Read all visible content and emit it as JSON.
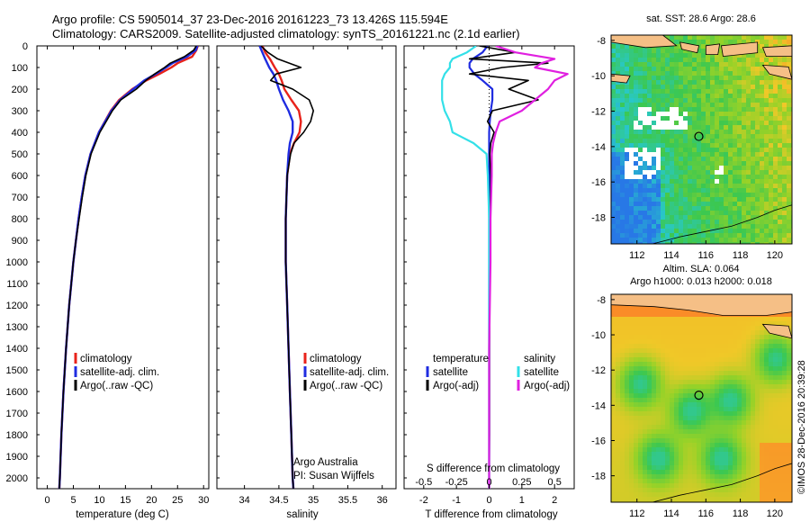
{
  "header": {
    "title_line1": "Argo profile: CS 5905014_37 23-Dec-2016 20161223_73 13.426S 115.594E",
    "title_line2": "Climatology: CARS2009. Satellite-adjusted climatology: synTS_20161221.nc (2.1d earlier)"
  },
  "colors": {
    "climatology": "#e8231b",
    "satellite": "#1f2ce0",
    "argo": "#000000",
    "salinity_satellite": "#33e0e8",
    "salinity_argo": "#e020e0",
    "land": "#f5bf86"
  },
  "depth_ticks": [
    "0",
    "100",
    "200",
    "300",
    "400",
    "500",
    "600",
    "700",
    "800",
    "900",
    "1000",
    "1100",
    "1200",
    "1300",
    "1400",
    "1500",
    "1600",
    "1700",
    "1800",
    "1900",
    "2000"
  ],
  "chart_data": [
    {
      "type": "line",
      "id": "temperature",
      "xlabel": "temperature (deg C)",
      "xlim": [
        -2,
        31
      ],
      "ylim": [
        2050,
        0
      ],
      "xticks": [
        "0",
        "5",
        "10",
        "15",
        "20",
        "25",
        "30"
      ],
      "depth": [
        0,
        20,
        50,
        80,
        100,
        130,
        160,
        200,
        250,
        300,
        400,
        500,
        600,
        700,
        800,
        900,
        1000,
        1200,
        1400,
        1600,
        1800,
        2000,
        2050
      ],
      "series": [
        {
          "name": "climatology",
          "values": [
            28.9,
            28.6,
            27.8,
            25.0,
            23.8,
            21.5,
            19.0,
            16.3,
            13.8,
            12.2,
            9.9,
            8.3,
            7.3,
            6.6,
            6.0,
            5.5,
            5.0,
            4.2,
            3.6,
            3.1,
            2.7,
            2.4,
            2.3
          ]
        },
        {
          "name": "satellite-adj. clim.",
          "values": [
            28.8,
            28.5,
            26.8,
            24.0,
            22.8,
            20.8,
            18.6,
            16.5,
            14.0,
            12.3,
            9.9,
            8.3,
            7.3,
            6.6,
            6.0,
            5.5,
            5.0,
            4.2,
            3.6,
            3.1,
            2.7,
            2.4,
            2.3
          ]
        },
        {
          "name": "Argo(..raw -QC)",
          "values": [
            28.6,
            28.1,
            26.3,
            23.6,
            22.5,
            20.6,
            18.9,
            17.1,
            14.1,
            12.5,
            10.1,
            8.4,
            7.4,
            6.7,
            6.1,
            5.5,
            5.0,
            4.2,
            3.6,
            3.1,
            2.7,
            2.4,
            2.3
          ]
        }
      ]
    },
    {
      "type": "line",
      "id": "salinity",
      "xlabel": "salinity",
      "xlim": [
        33.6,
        36.2
      ],
      "ylim": [
        2050,
        0
      ],
      "xticks": [
        "34",
        "34.5",
        "35",
        "35.5",
        "36"
      ],
      "depth": [
        0,
        30,
        60,
        100,
        130,
        160,
        200,
        250,
        300,
        350,
        400,
        450,
        500,
        600,
        800,
        1000,
        1200,
        1400,
        1600,
        1800,
        2000,
        2050
      ],
      "series": [
        {
          "name": "climatology",
          "values": [
            34.26,
            34.3,
            34.37,
            34.44,
            34.5,
            34.54,
            34.58,
            34.68,
            34.79,
            34.82,
            34.8,
            34.72,
            34.66,
            34.62,
            34.6,
            34.6,
            34.62,
            34.64,
            34.66,
            34.68,
            34.7,
            34.71
          ]
        },
        {
          "name": "satellite-adj. clim.",
          "values": [
            34.22,
            34.26,
            34.3,
            34.36,
            34.42,
            34.46,
            34.5,
            34.56,
            34.64,
            34.7,
            34.7,
            34.66,
            34.64,
            34.62,
            34.6,
            34.6,
            34.62,
            34.64,
            34.66,
            34.68,
            34.7,
            34.71
          ]
        },
        {
          "name": "Argo(..raw -QC)",
          "values": [
            34.24,
            34.34,
            34.48,
            34.82,
            34.46,
            34.38,
            34.7,
            34.94,
            35.0,
            34.96,
            34.86,
            34.72,
            34.67,
            34.62,
            34.6,
            34.6,
            34.62,
            34.64,
            34.66,
            34.68,
            34.7,
            34.71
          ]
        }
      ]
    },
    {
      "type": "line",
      "id": "difference",
      "xlabel": "T difference from climatology",
      "xlabel_top": "S difference from climatology",
      "xlim": [
        -2.6,
        2.6
      ],
      "ylim": [
        2050,
        0
      ],
      "xticks": [
        "-2",
        "-1",
        "0",
        "1",
        "2"
      ],
      "xticks_top": [
        "-0.5",
        "-0.25",
        "0",
        "0.25",
        "0.5"
      ],
      "depth": [
        0,
        30,
        60,
        80,
        100,
        130,
        160,
        200,
        250,
        300,
        350,
        400,
        450,
        500,
        600,
        800,
        1000,
        1400,
        1800,
        2050
      ],
      "series": [
        {
          "name": "temperature satellite",
          "values": [
            -0.05,
            -0.2,
            -0.5,
            -0.6,
            -0.6,
            -0.45,
            -0.2,
            0.1,
            0.1,
            0.05,
            0.02,
            0.0,
            0.0,
            0.0,
            0.0,
            0.0,
            0.0,
            0.0,
            0.0,
            0.0
          ]
        },
        {
          "name": "temperature Argo(-adj)",
          "values": [
            -0.3,
            0.8,
            -0.6,
            1.8,
            0.4,
            -0.6,
            1.2,
            0.6,
            1.5,
            0.1,
            -0.05,
            0.15,
            0.05,
            0.02,
            0.05,
            0.03,
            0.02,
            0.01,
            0.01,
            0.0
          ]
        },
        {
          "name": "salinity satellite",
          "values": [
            -0.1,
            -0.17,
            -0.28,
            -0.3,
            -0.3,
            -0.34,
            -0.36,
            -0.36,
            -0.36,
            -0.34,
            -0.3,
            -0.28,
            -0.12,
            -0.02,
            -0.01,
            0.0,
            0.0,
            0.0,
            0.0,
            0.0
          ]
        },
        {
          "name": "salinity Argo(-adj)",
          "values": [
            0.05,
            0.2,
            0.5,
            0.4,
            0.35,
            0.6,
            0.5,
            0.45,
            0.35,
            0.25,
            0.08,
            0.05,
            0.03,
            0.02,
            0.02,
            0.01,
            0.01,
            0.0,
            0.0,
            0.0
          ]
        }
      ]
    },
    {
      "type": "heatmap",
      "id": "sst_map",
      "title": "sat. SST: 28.6  Argo: 28.6",
      "xlim": [
        110.5,
        121
      ],
      "ylim": [
        -19.5,
        -7.7
      ],
      "xticks": [
        "112",
        "114",
        "116",
        "118",
        "120"
      ],
      "yticks": [
        "-8",
        "-10",
        "-12",
        "-14",
        "-16",
        "-18"
      ],
      "argo_position": {
        "lon": 115.594,
        "lat": -13.426
      }
    },
    {
      "type": "heatmap",
      "id": "sla_map",
      "title_line1": "Altim. SLA: 0.064",
      "title_line2": "Argo h1000: 0.013 h2000: 0.018",
      "xlim": [
        110.5,
        121
      ],
      "ylim": [
        -19.5,
        -7.7
      ],
      "xticks": [
        "112",
        "114",
        "116",
        "118",
        "120"
      ],
      "yticks": [
        "-8",
        "-10",
        "-12",
        "-14",
        "-16",
        "-18"
      ],
      "argo_position": {
        "lon": 115.594,
        "lat": -13.426
      }
    }
  ],
  "legend_tempsal": [
    "climatology",
    "satellite-adj. clim.",
    "Argo(..raw -QC)"
  ],
  "legend_diff": {
    "temperature_header": "temperature",
    "salinity_header": "salinity",
    "satellite": "satellite",
    "argo": "Argo(-adj)"
  },
  "annotation": {
    "line1": "Argo Australia",
    "line2": "PI: Susan Wijffels"
  },
  "watermark": "©IMOS 28-Dec-2016 20:39:28"
}
